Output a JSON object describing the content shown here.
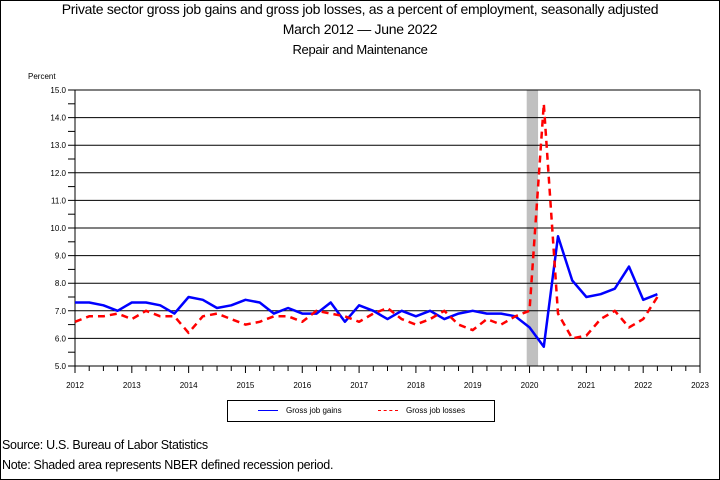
{
  "title": {
    "line1": "Private sector gross job gains and gross job losses, as a percent of employment, seasonally adjusted",
    "line2": "March 2012 — June 2022",
    "line3": "Repair and Maintenance"
  },
  "colors": {
    "gains": "#0000ff",
    "losses": "#ff0000",
    "recession": "#c0c0c0"
  },
  "legend": {
    "gains_label": "Gross job gains",
    "losses_label": "Gross job losses"
  },
  "footer": {
    "source": "Source: U.S. Bureau of Labor Statistics",
    "note": "Note: Shaded area represents NBER defined recession period."
  },
  "chart_data": {
    "type": "line",
    "title": "Private sector gross job gains and gross job losses, as a percent of employment, seasonally adjusted",
    "subtitle": "March 2012 — June 2022; Repair and Maintenance",
    "xlabel": "",
    "ylabel": "Percent",
    "ylim": [
      5.0,
      15.0
    ],
    "xlim": [
      2012,
      2023
    ],
    "y_ticks": [
      "5.0",
      "6.0",
      "7.0",
      "8.0",
      "9.0",
      "10.0",
      "11.0",
      "12.0",
      "13.0",
      "14.0",
      "15.0"
    ],
    "x_ticks": [
      "2012",
      "2013",
      "2014",
      "2015",
      "2016",
      "2017",
      "2018",
      "2019",
      "2020",
      "2021",
      "2022",
      "2023"
    ],
    "grid": "horizontal",
    "legend_position": "bottom",
    "recession_shading": [
      2019.95,
      2020.15
    ],
    "x": [
      2012.0,
      2012.25,
      2012.5,
      2012.75,
      2013.0,
      2013.25,
      2013.5,
      2013.75,
      2014.0,
      2014.25,
      2014.5,
      2014.75,
      2015.0,
      2015.25,
      2015.5,
      2015.75,
      2016.0,
      2016.25,
      2016.5,
      2016.75,
      2017.0,
      2017.25,
      2017.5,
      2017.75,
      2018.0,
      2018.25,
      2018.5,
      2018.75,
      2019.0,
      2019.25,
      2019.5,
      2019.75,
      2020.0,
      2020.25,
      2020.5,
      2020.75,
      2021.0,
      2021.25,
      2021.5,
      2021.75,
      2022.0,
      2022.25
    ],
    "series": [
      {
        "name": "Gross job gains",
        "style": "solid",
        "color": "#0000ff",
        "values": [
          7.3,
          7.3,
          7.2,
          7.0,
          7.3,
          7.3,
          7.2,
          6.9,
          7.5,
          7.4,
          7.1,
          7.2,
          7.4,
          7.3,
          6.9,
          7.1,
          6.9,
          6.9,
          7.3,
          6.6,
          7.2,
          7.0,
          6.7,
          7.0,
          6.8,
          7.0,
          6.7,
          6.9,
          7.0,
          6.9,
          6.9,
          6.8,
          6.4,
          5.7,
          9.7,
          8.1,
          7.5,
          7.6,
          7.8,
          8.6,
          7.4,
          7.6
        ]
      },
      {
        "name": "Gross job losses",
        "style": "dashed",
        "color": "#ff0000",
        "values": [
          6.6,
          6.8,
          6.8,
          6.9,
          6.7,
          7.0,
          6.8,
          6.8,
          6.2,
          6.8,
          6.9,
          6.7,
          6.5,
          6.6,
          6.8,
          6.8,
          6.6,
          7.0,
          6.9,
          6.8,
          6.6,
          6.9,
          7.1,
          6.7,
          6.5,
          6.7,
          7.0,
          6.5,
          6.3,
          6.7,
          6.5,
          6.8,
          7.0,
          14.5,
          6.9,
          6.0,
          6.1,
          6.7,
          7.0,
          6.4,
          6.7,
          7.5
        ]
      }
    ]
  }
}
